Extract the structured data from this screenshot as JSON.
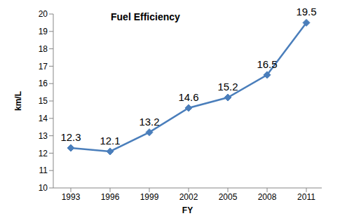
{
  "chart_data": {
    "type": "line",
    "title": "Fuel Efficiency",
    "x_label": "FY",
    "y_label": "km/L",
    "categories": [
      "1993",
      "1996",
      "1999",
      "2002",
      "2005",
      "2008",
      "2011"
    ],
    "values": [
      12.3,
      12.1,
      13.2,
      14.6,
      15.2,
      16.5,
      19.5
    ],
    "color": "#4a7ebb",
    "marker": "diamond",
    "ylim": [
      10,
      20
    ],
    "yticks": [
      10,
      11,
      12,
      13,
      14,
      15,
      16,
      17,
      18,
      19,
      20
    ],
    "grid": false,
    "data_labels": true
  }
}
